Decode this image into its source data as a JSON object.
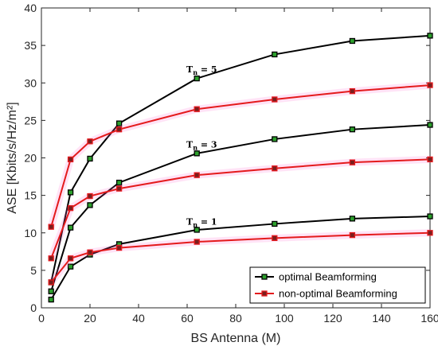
{
  "chart_data": {
    "type": "line",
    "xlabel": "BS Antenna (M)",
    "ylabel": "ASE [Kbits/s/Hz/m²]",
    "xlim": [
      0,
      160
    ],
    "ylim": [
      0,
      40
    ],
    "xticks": [
      0,
      20,
      40,
      60,
      80,
      100,
      120,
      140,
      160
    ],
    "yticks": [
      0,
      5,
      10,
      15,
      20,
      25,
      30,
      35,
      40
    ],
    "grid": false,
    "legend_position": "bottom-right",
    "x": [
      4,
      12,
      20,
      32,
      64,
      96,
      128,
      160
    ],
    "series": [
      {
        "name": "optimal Beamforming",
        "group": "Tn=5",
        "color": "#000000",
        "values": [
          3.4,
          15.4,
          19.9,
          24.6,
          30.6,
          33.8,
          35.6,
          36.3
        ]
      },
      {
        "name": "non-optimal Beamforming",
        "group": "Tn=5",
        "color": "#e41a1c",
        "values": [
          10.8,
          19.8,
          22.2,
          23.8,
          26.5,
          27.8,
          28.9,
          29.7
        ]
      },
      {
        "name": "optimal Beamforming",
        "group": "Tn=3",
        "color": "#000000",
        "values": [
          2.2,
          10.7,
          13.7,
          16.7,
          20.6,
          22.5,
          23.8,
          24.4
        ]
      },
      {
        "name": "non-optimal Beamforming",
        "group": "Tn=3",
        "color": "#e41a1c",
        "values": [
          6.6,
          13.3,
          14.9,
          15.9,
          17.7,
          18.6,
          19.4,
          19.8
        ]
      },
      {
        "name": "optimal Beamforming",
        "group": "Tn=1",
        "color": "#000000",
        "values": [
          1.1,
          5.5,
          7.1,
          8.5,
          10.4,
          11.2,
          11.9,
          12.2
        ]
      },
      {
        "name": "non-optimal Beamforming",
        "group": "Tn=1",
        "color": "#e41a1c",
        "values": [
          3.4,
          6.6,
          7.4,
          8.0,
          8.8,
          9.3,
          9.7,
          10.0
        ]
      }
    ],
    "annotations": [
      {
        "text": "Tn = 5",
        "x": 66,
        "y": 31.4
      },
      {
        "text": "Tn = 3",
        "x": 66,
        "y": 21.4
      },
      {
        "text": "Tn = 1",
        "x": 66,
        "y": 11.1
      }
    ],
    "legend": [
      {
        "label": "optimal Beamforming",
        "color": "#000000",
        "marker_fill": "#2ca02c"
      },
      {
        "label": "non-optimal Beamforming",
        "color": "#e41a1c",
        "marker_fill": "#7a1e1e"
      }
    ]
  }
}
